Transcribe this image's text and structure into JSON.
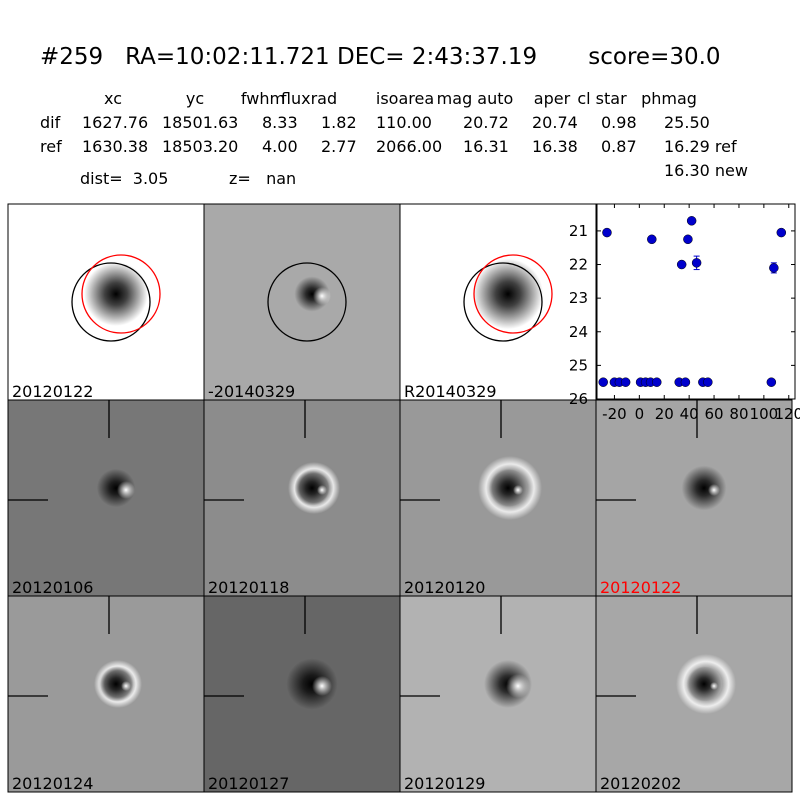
{
  "header": {
    "title": "#259   RA=10:02:11.721 DEC= 2:43:37.19       score=30.0"
  },
  "table": {
    "columns": [
      "xc",
      "yc",
      "fwhm",
      "fluxrad",
      "isoarea",
      "mag auto",
      "aper",
      "cl star",
      "phmag"
    ],
    "rows": [
      {
        "label": "dif",
        "cells": [
          "1627.76",
          "18501.63",
          "8.33",
          "1.82",
          "110.00",
          "20.72",
          "20.74",
          "0.98",
          "25.50"
        ]
      },
      {
        "label": "ref",
        "cells": [
          "1630.38",
          "18503.20",
          "4.00",
          "2.77",
          "2066.00",
          "16.31",
          "16.38",
          "0.87",
          "16.29 ref"
        ]
      }
    ],
    "extra": "16.30 new"
  },
  "dist": "dist=  3.05",
  "z": "z=   nan",
  "panels": [
    {
      "label": "20120122"
    },
    {
      "label": "-20140329"
    },
    {
      "label": "R20140329"
    },
    {
      "label": "20120106"
    },
    {
      "label": "20120118"
    },
    {
      "label": "20120120"
    },
    {
      "label": "20120122",
      "color": "#ff0000"
    },
    {
      "label": "20120124"
    },
    {
      "label": "20120127"
    },
    {
      "label": "20120129"
    },
    {
      "label": "20120202"
    }
  ],
  "chart_data": {
    "type": "scatter",
    "x": [
      -29,
      -26,
      -20,
      -16,
      -11,
      1,
      5,
      9,
      10,
      14,
      32,
      34,
      37,
      39,
      42,
      46,
      51,
      55,
      106,
      108,
      114
    ],
    "values": [
      25.5,
      21.05,
      25.5,
      25.5,
      25.5,
      25.5,
      25.5,
      25.5,
      21.25,
      25.5,
      25.5,
      22.0,
      25.5,
      21.25,
      20.7,
      21.95,
      25.5,
      25.5,
      25.5,
      22.1,
      21.05
    ],
    "errors": [
      null,
      null,
      null,
      null,
      null,
      null,
      null,
      null,
      null,
      null,
      null,
      null,
      null,
      null,
      null,
      0.2,
      null,
      null,
      null,
      0.15,
      null
    ],
    "color": "#0000cc",
    "xlim": [
      -34,
      125
    ],
    "ylim": [
      26,
      20.2
    ],
    "xticks": [
      -20,
      0,
      20,
      40,
      60,
      80,
      100,
      120
    ],
    "yticks": [
      21,
      22,
      23,
      24,
      25,
      26
    ]
  }
}
